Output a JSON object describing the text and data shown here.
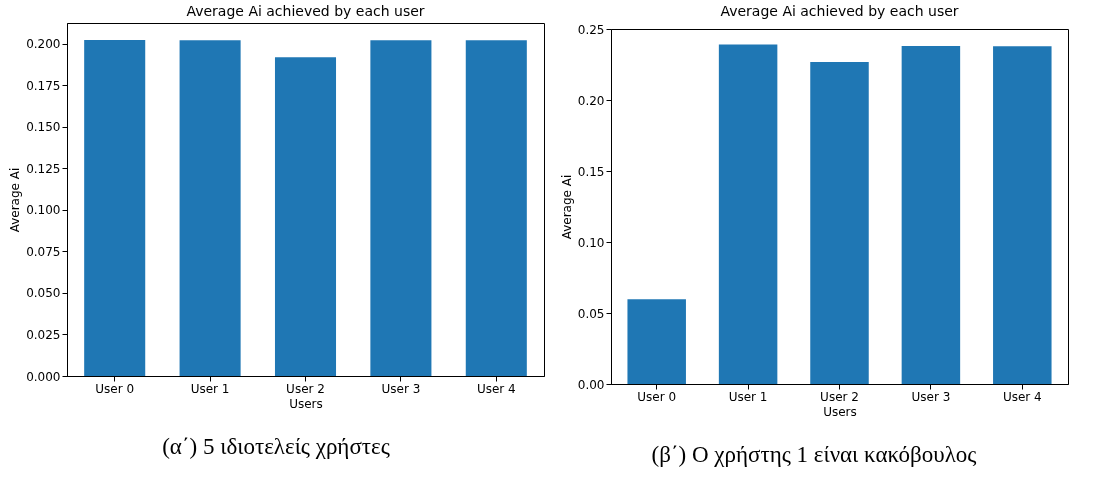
{
  "chart_data": [
    {
      "type": "bar",
      "title": "Average Ai achieved by each user",
      "xlabel": "Users",
      "ylabel": "Average Ai",
      "categories": [
        "User 0",
        "User 1",
        "User 2",
        "User 3",
        "User 4"
      ],
      "values": [
        0.2022,
        0.202,
        0.1918,
        0.202,
        0.202
      ],
      "color": "#1f77b4",
      "ylim": [
        0,
        0.2124
      ],
      "yticks": [
        {
          "value": 0,
          "label": "0.000"
        },
        {
          "value": 0.025,
          "label": "0.025"
        },
        {
          "value": 0.05,
          "label": "0.050"
        },
        {
          "value": 0.075,
          "label": "0.075"
        },
        {
          "value": 0.1,
          "label": "0.100"
        },
        {
          "value": 0.125,
          "label": "0.125"
        },
        {
          "value": 0.15,
          "label": "0.150"
        },
        {
          "value": 0.175,
          "label": "0.175"
        },
        {
          "value": 0.2,
          "label": "0.200"
        }
      ],
      "grid": false,
      "annotations": [
        "(α΄) 5 ιδιοτελείς χρήστες"
      ]
    },
    {
      "type": "bar",
      "title": "Average Ai achieved by each user",
      "xlabel": "Users",
      "ylabel": "Average Ai",
      "categories": [
        "User 0",
        "User 1",
        "User 2",
        "User 3",
        "User 4"
      ],
      "values": [
        0.0596,
        0.239,
        0.2268,
        0.238,
        0.2379
      ],
      "color": "#1f77b4",
      "ylim": [
        0,
        0.25
      ],
      "yticks": [
        {
          "value": 0,
          "label": "0.00"
        },
        0.05,
        {
          "value": 0.1,
          "label": "0.10"
        },
        0.15,
        {
          "value": 0.2,
          "label": "0.20"
        },
        0.25
      ],
      "grid": false,
      "annotations": [
        "(β΄) Ο χρήστης 1 είναι κακόβουλος"
      ]
    }
  ]
}
